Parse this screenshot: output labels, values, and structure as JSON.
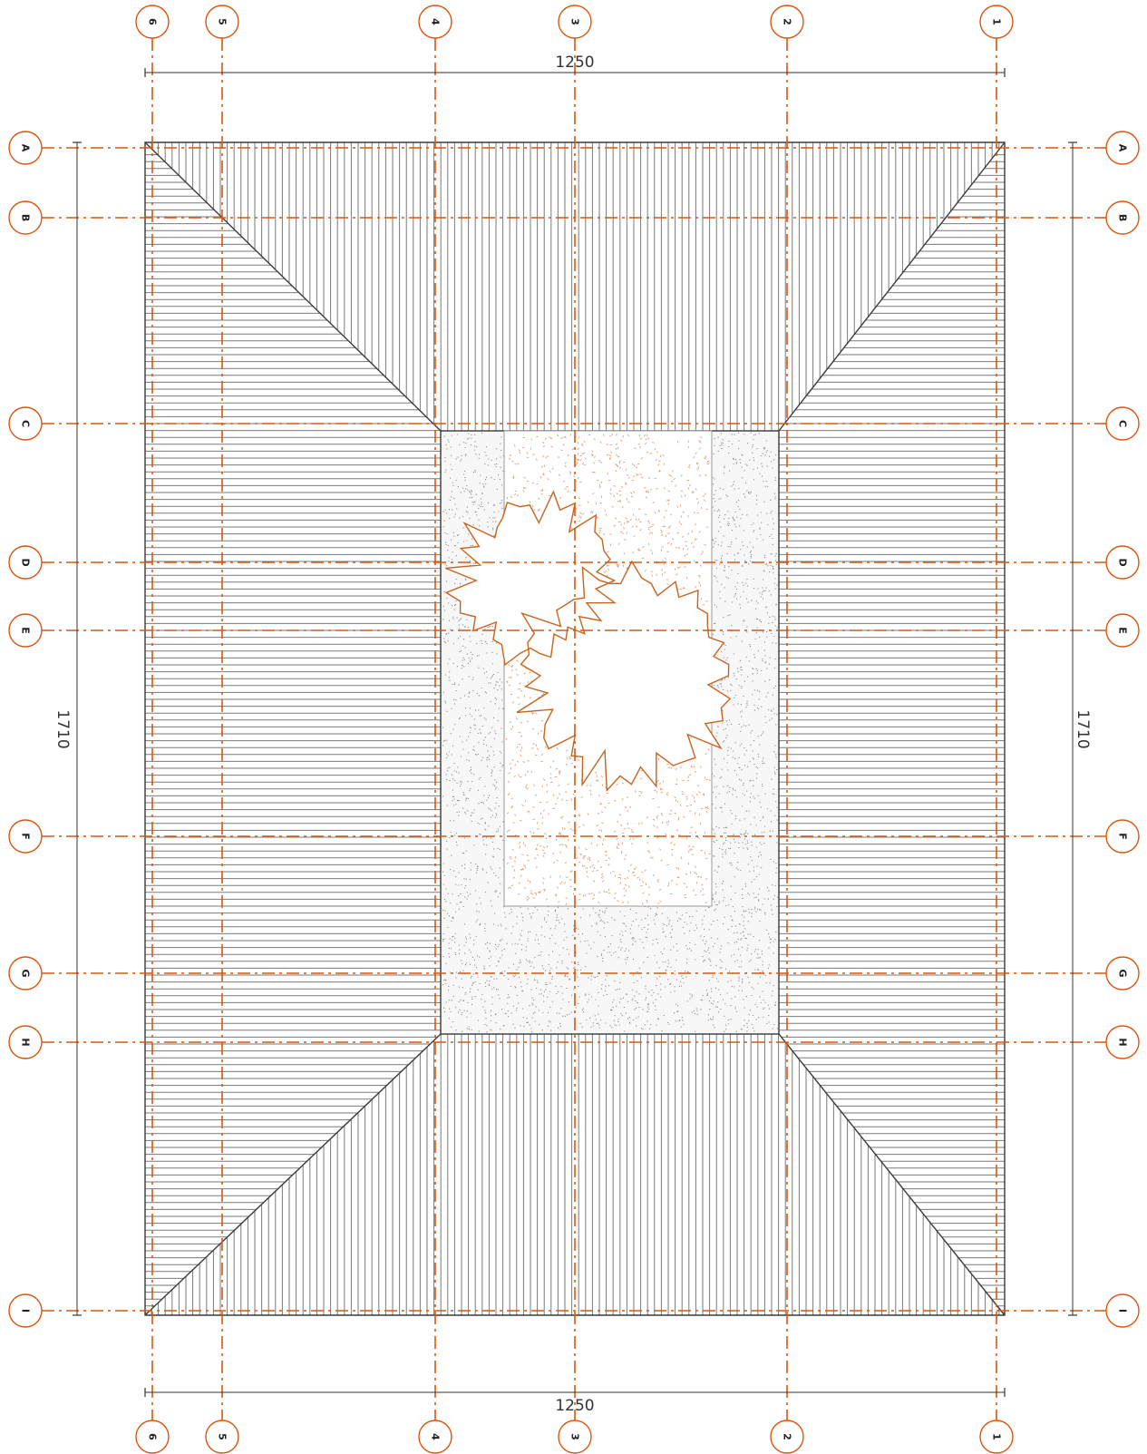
{
  "drawing": {
    "colors": {
      "background": "#ffffff",
      "outline": "#3a3a3a",
      "hatch": "#7a7a7a",
      "grid": "#d9560f",
      "tree": "#c8641e",
      "gravel": "#8a8a8a",
      "sand": "#d9956a",
      "dimension": "#333333"
    },
    "dimensions": {
      "width": "1250",
      "height": "1710"
    },
    "grid_axes": {
      "columns": [
        {
          "label": "6"
        },
        {
          "label": "5"
        },
        {
          "label": "4"
        },
        {
          "label": "3"
        },
        {
          "label": "2"
        },
        {
          "label": "1"
        }
      ],
      "rows": [
        {
          "label": "A"
        },
        {
          "label": "B"
        },
        {
          "label": "C"
        },
        {
          "label": "D"
        },
        {
          "label": "E"
        },
        {
          "label": "F"
        },
        {
          "label": "G"
        },
        {
          "label": "H"
        },
        {
          "label": "I"
        }
      ]
    },
    "icons": {
      "tree": "tree-canopy-icon"
    }
  }
}
